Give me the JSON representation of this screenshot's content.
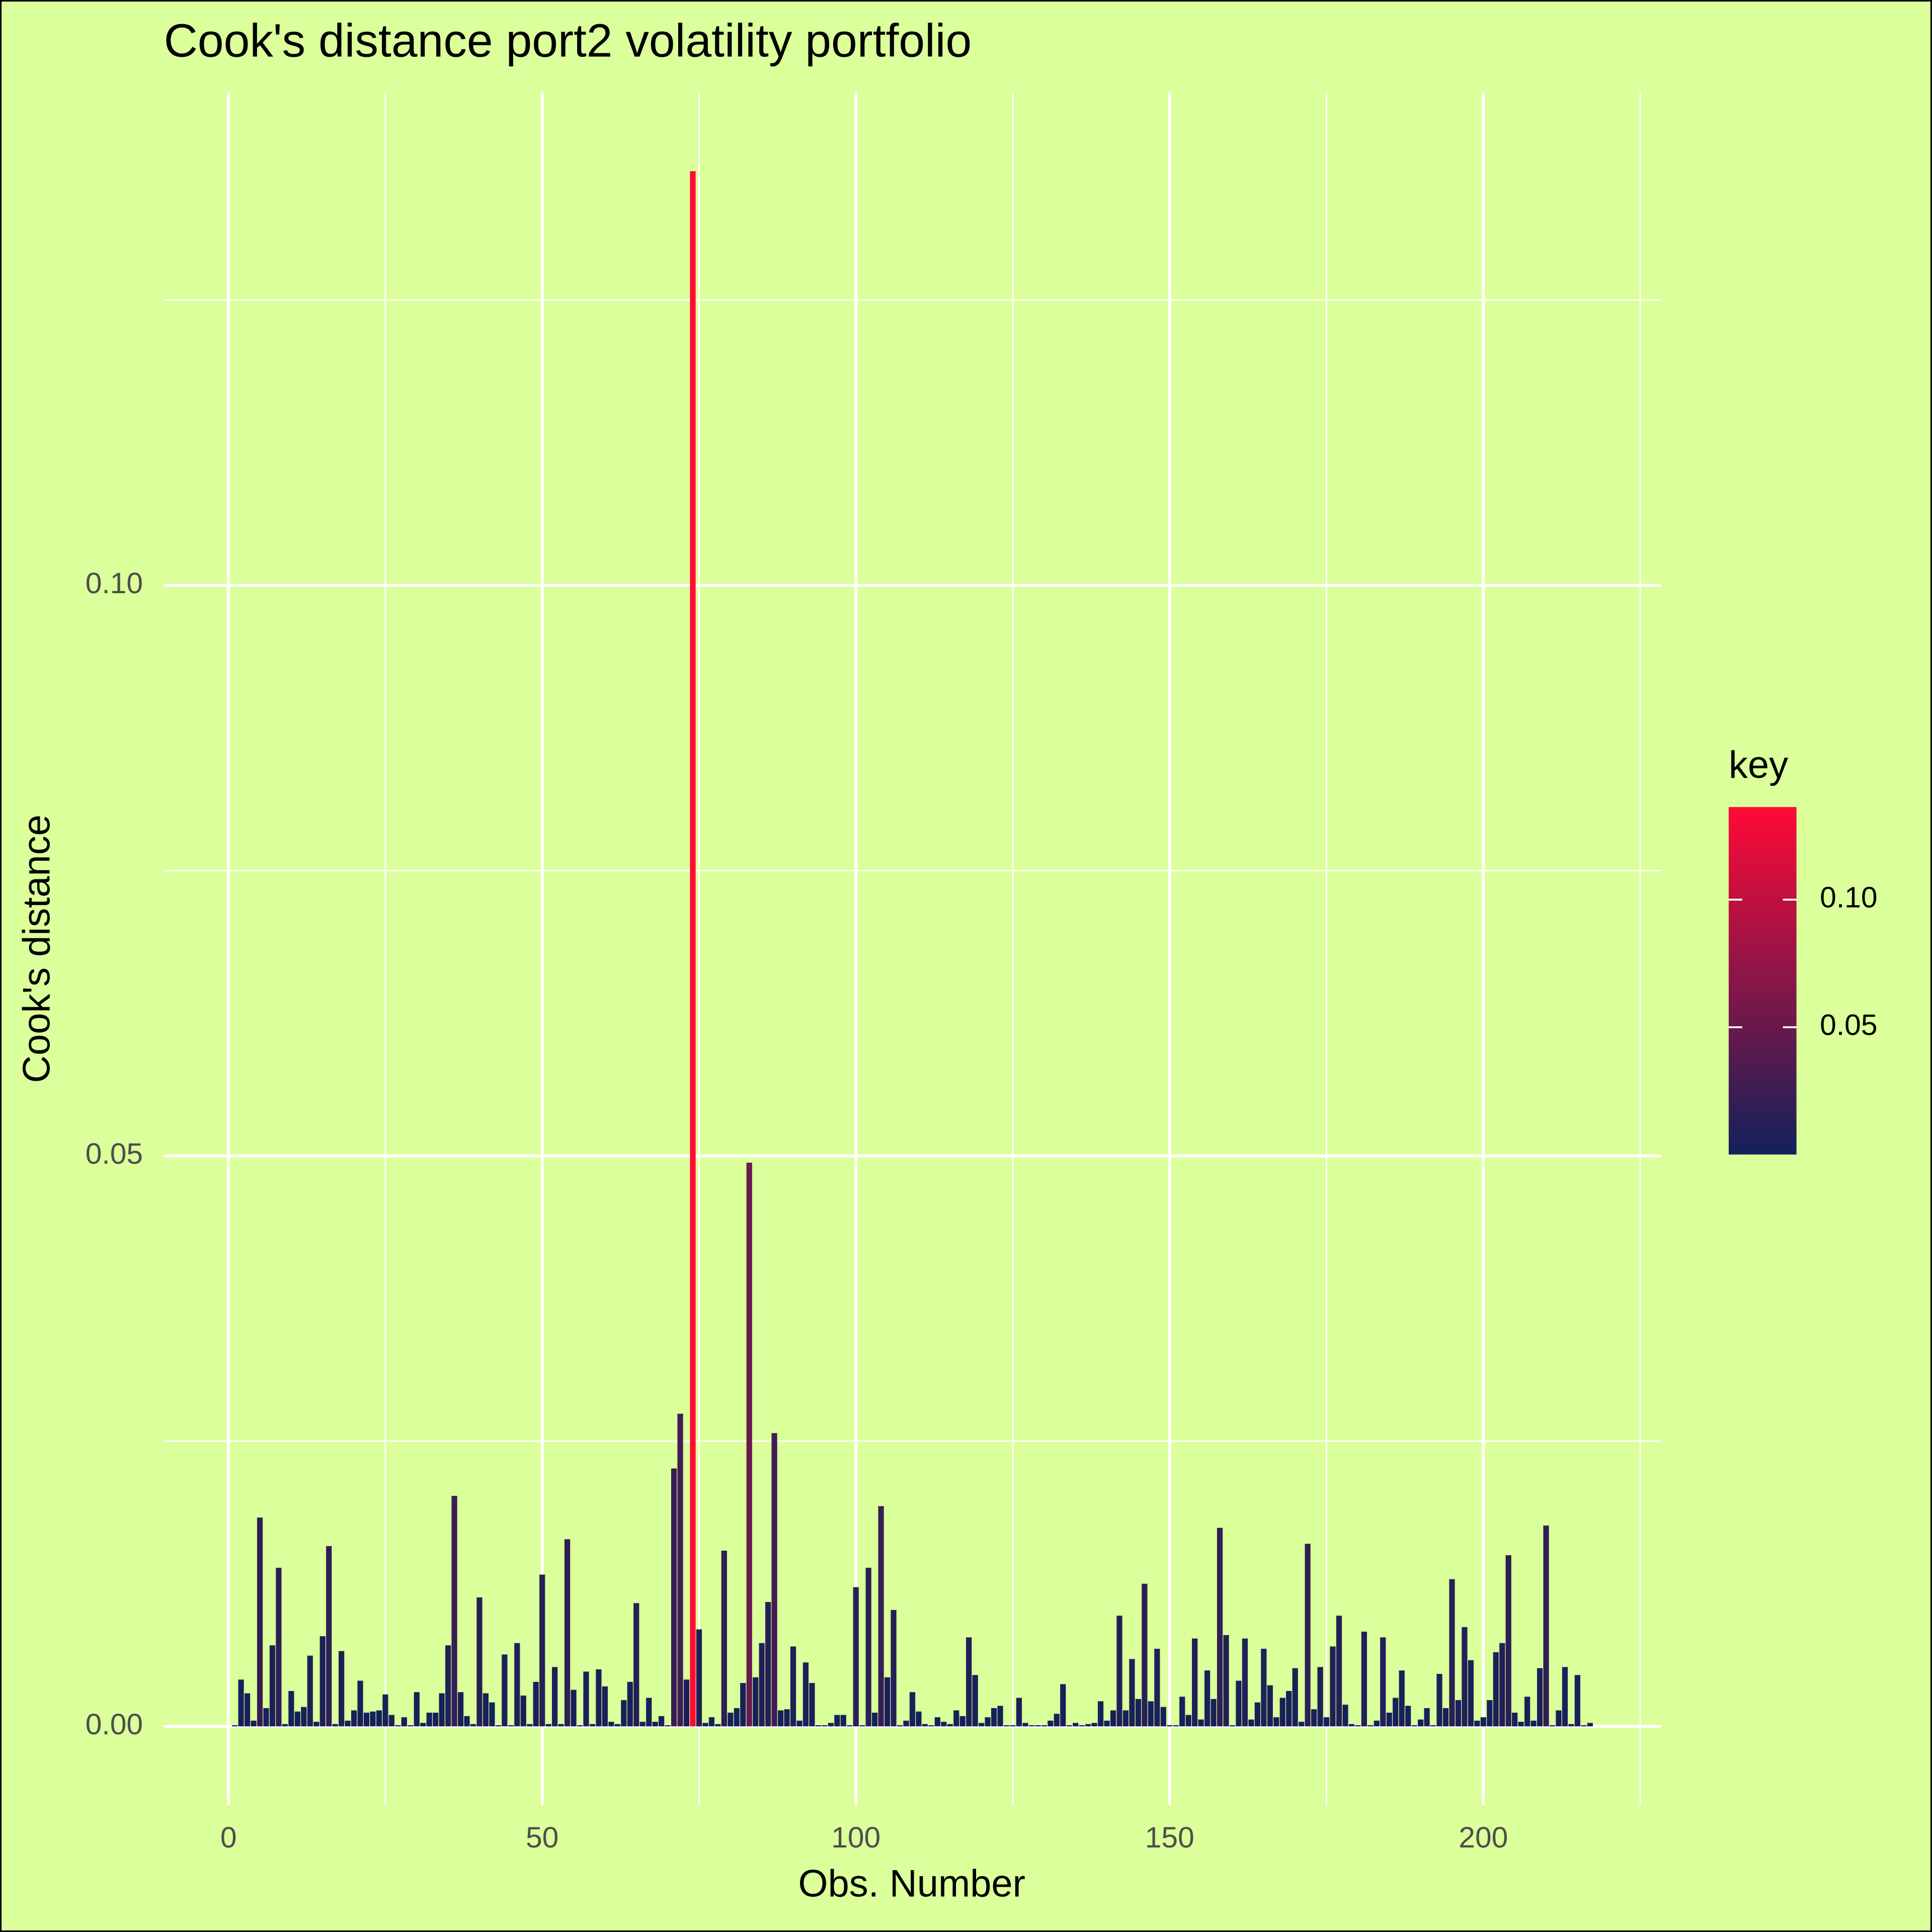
{
  "chart_data": {
    "type": "bar",
    "title": "Cook's distance port2 volatility portfolio",
    "x_label": "Obs. Number",
    "y_label": "Cook's distance",
    "legend_title": "key",
    "color_scale": {
      "low": "#12215a",
      "high": "#ff0a36"
    },
    "legend_ticks": [
      {
        "value": 0.05,
        "label": "0.05"
      },
      {
        "value": 0.1,
        "label": "0.10"
      }
    ],
    "xlim": [
      -10.3,
      228.3
    ],
    "ylim": [
      -0.0069,
      0.1432
    ],
    "xticks": [
      0,
      50,
      100,
      150,
      200
    ],
    "xminor": [
      25,
      75,
      125,
      175,
      225
    ],
    "yticks": [
      {
        "value": 0,
        "label": "0.00"
      },
      {
        "value": 0.05,
        "label": "0.05"
      },
      {
        "value": 0.1,
        "label": "0.10"
      }
    ],
    "yminor": [
      0.025,
      0.075,
      0.125
    ],
    "grid": true,
    "x": [
      1,
      2,
      3,
      4,
      5,
      6,
      7,
      8,
      9,
      10,
      11,
      12,
      13,
      14,
      15,
      16,
      17,
      18,
      19,
      20,
      21,
      22,
      23,
      24,
      25,
      26,
      27,
      28,
      29,
      30,
      31,
      32,
      33,
      34,
      35,
      36,
      37,
      38,
      39,
      40,
      41,
      42,
      43,
      44,
      45,
      46,
      47,
      48,
      49,
      50,
      51,
      52,
      53,
      54,
      55,
      56,
      57,
      58,
      59,
      60,
      61,
      62,
      63,
      64,
      65,
      66,
      67,
      68,
      69,
      70,
      71,
      72,
      73,
      74,
      75,
      76,
      77,
      78,
      79,
      80,
      81,
      82,
      83,
      84,
      85,
      86,
      87,
      88,
      89,
      90,
      91,
      92,
      93,
      94,
      95,
      96,
      97,
      98,
      99,
      100,
      101,
      102,
      103,
      104,
      105,
      106,
      107,
      108,
      109,
      110,
      111,
      112,
      113,
      114,
      115,
      116,
      117,
      118,
      119,
      120,
      121,
      122,
      123,
      124,
      125,
      126,
      127,
      128,
      129,
      130,
      131,
      132,
      133,
      134,
      135,
      136,
      137,
      138,
      139,
      140,
      141,
      142,
      143,
      144,
      145,
      146,
      147,
      148,
      149,
      150,
      151,
      152,
      153,
      154,
      155,
      156,
      157,
      158,
      159,
      160,
      161,
      162,
      163,
      164,
      165,
      166,
      167,
      168,
      169,
      170,
      171,
      172,
      173,
      174,
      175,
      176,
      177,
      178,
      179,
      180,
      181,
      182,
      183,
      184,
      185,
      186,
      187,
      188,
      189,
      190,
      191,
      192,
      193,
      194,
      195,
      196,
      197,
      198,
      199,
      200,
      201,
      202,
      203,
      204,
      205,
      206,
      207,
      208,
      209,
      210,
      211,
      212,
      213,
      214,
      215,
      216,
      217
    ],
    "values": [
      0.0001,
      0.0041,
      0.0029,
      0.0005,
      0.0183,
      0.0016,
      0.0071,
      0.0139,
      0.0002,
      0.0031,
      0.0013,
      0.0017,
      0.0062,
      0.0004,
      0.0079,
      0.0158,
      0.0002,
      0.0066,
      0.0005,
      0.0014,
      0.004,
      0.0012,
      0.0013,
      0.0014,
      0.0028,
      0.001,
      0.0001,
      0.0008,
      0.0001,
      0.003,
      0.0003,
      0.0012,
      0.0012,
      0.0029,
      0.0071,
      0.0202,
      0.003,
      0.0009,
      0.0002,
      0.0113,
      0.0029,
      0.0021,
      0.0001,
      0.0063,
      0.0001,
      0.0073,
      0.0027,
      0.0002,
      0.0039,
      0.0133,
      0.0002,
      0.0052,
      0.0002,
      0.0164,
      0.0032,
      0.0001,
      0.0048,
      0.0002,
      0.005,
      0.0035,
      0.0004,
      0.0002,
      0.0023,
      0.0039,
      0.0108,
      0.0004,
      0.0025,
      0.0004,
      0.0009,
      0.0001,
      0.0226,
      0.0274,
      0.0041,
      0.1363,
      0.0085,
      0.0003,
      0.0008,
      0.0002,
      0.0154,
      0.0012,
      0.0016,
      0.0038,
      0.0494,
      0.0043,
      0.0073,
      0.0109,
      0.0257,
      0.0014,
      0.0015,
      0.007,
      0.0005,
      0.0056,
      0.0038,
      0.0001,
      0.0001,
      0.0003,
      0.001,
      0.001,
      0.0001,
      0.0122,
      0.0001,
      0.0139,
      0.0012,
      0.0193,
      0.0043,
      0.0102,
      0.0001,
      0.0005,
      0.003,
      0.0013,
      0.0002,
      0.0001,
      0.0008,
      0.0004,
      0.0002,
      0.0014,
      0.0009,
      0.0078,
      0.0045,
      0.0003,
      0.0008,
      0.0016,
      0.0018,
      0.0001,
      0.0001,
      0.0025,
      0.0003,
      0.0001,
      0.0001,
      0.0001,
      0.0005,
      0.0011,
      0.0037,
      0.0001,
      0.0003,
      0.0001,
      0.0002,
      0.0003,
      0.0022,
      0.0005,
      0.0014,
      0.0097,
      0.0014,
      0.0059,
      0.0024,
      0.0125,
      0.0022,
      0.0068,
      0.0017,
      0.0001,
      0.0001,
      0.0026,
      0.001,
      0.0077,
      0.0006,
      0.0049,
      0.0024,
      0.0174,
      0.008,
      0.0001,
      0.004,
      0.0077,
      0.0006,
      0.0021,
      0.0068,
      0.0036,
      0.0008,
      0.0025,
      0.0031,
      0.0051,
      0.0004,
      0.016,
      0.0015,
      0.0052,
      0.0008,
      0.007,
      0.0097,
      0.0019,
      0.0002,
      0.0001,
      0.0083,
      0.0001,
      0.0005,
      0.0078,
      0.0012,
      0.0025,
      0.0049,
      0.0018,
      0.0001,
      0.0006,
      0.0016,
      0.0001,
      0.0046,
      0.0016,
      0.0129,
      0.0023,
      0.0087,
      0.0058,
      0.0005,
      0.0008,
      0.0023,
      0.0065,
      0.0073,
      0.015,
      0.0012,
      0.0004,
      0.0026,
      0.0005,
      0.0051,
      0.0176,
      0.0001,
      0.0014,
      0.0052,
      0.0002,
      0.0045,
      0.0001,
      0.0003
    ]
  }
}
